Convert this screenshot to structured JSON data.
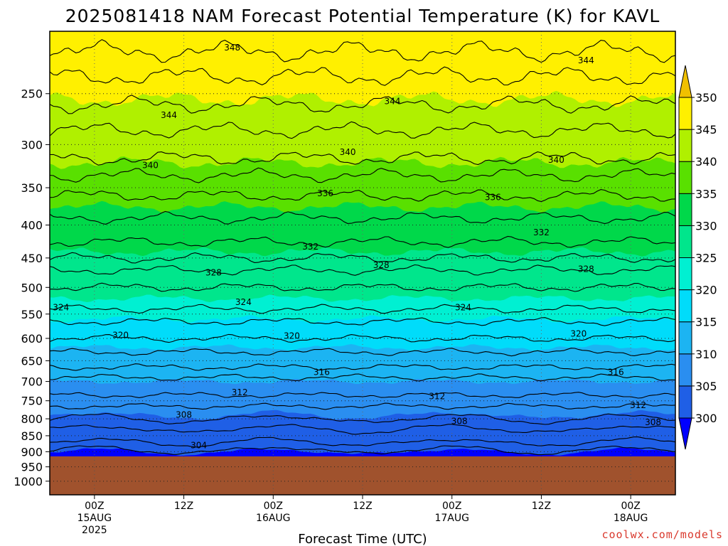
{
  "chart_data": {
    "type": "heatmap",
    "title": "2025081418 NAM Forecast Potential Temperature (K) for KAVL",
    "xlabel": "Forecast Time (UTC)",
    "ylabel": "",
    "credit": "coolwx.com/models",
    "y_axis": {
      "scale": "pressure (inverted)",
      "range": [
        1050,
        200
      ],
      "ticks": [
        250,
        300,
        350,
        400,
        450,
        500,
        550,
        600,
        650,
        700,
        750,
        800,
        850,
        900,
        950,
        1000
      ],
      "tick_labels": [
        "250",
        "300",
        "350",
        "400",
        "450",
        "500",
        "550",
        "600",
        "650",
        "700",
        "750",
        "800",
        "850",
        "900",
        "950",
        "1000"
      ]
    },
    "x_axis": {
      "range_hours_from_init": [
        0,
        84
      ],
      "ticks": [
        {
          "hour": 6,
          "l1": "00Z",
          "l2": "15AUG",
          "l3": "2025"
        },
        {
          "hour": 18,
          "l1": "12Z",
          "l2": "",
          "l3": ""
        },
        {
          "hour": 30,
          "l1": "00Z",
          "l2": "16AUG",
          "l3": ""
        },
        {
          "hour": 42,
          "l1": "12Z",
          "l2": "",
          "l3": ""
        },
        {
          "hour": 54,
          "l1": "00Z",
          "l2": "17AUG",
          "l3": ""
        },
        {
          "hour": 66,
          "l1": "12Z",
          "l2": "",
          "l3": ""
        },
        {
          "hour": 78,
          "l1": "00Z",
          "l2": "18AUG",
          "l3": ""
        }
      ]
    },
    "grid": true,
    "ground_level_hPa": 915,
    "colorbar": {
      "levels": [
        300,
        305,
        310,
        315,
        320,
        325,
        330,
        335,
        340,
        345,
        350
      ],
      "labels": [
        "300",
        "305",
        "310",
        "315",
        "320",
        "325",
        "330",
        "335",
        "340",
        "345",
        "350"
      ],
      "colors": [
        "#0000ff",
        "#1f5fe6",
        "#2a8ef0",
        "#1cb4f2",
        "#00dcfa",
        "#00f0d2",
        "#00e68c",
        "#00d84a",
        "#59e000",
        "#b0f000",
        "#fff000",
        "#f0c000"
      ]
    },
    "fill_levels": [
      {
        "value": 300,
        "color": "#0000ff",
        "p_start": 900,
        "p_end": 915
      },
      {
        "value": 305,
        "color": "#1f5fe6",
        "p_start": 790,
        "p_end": 900
      },
      {
        "value": 310,
        "color": "#2a8ef0",
        "p_start": 700,
        "p_end": 790
      },
      {
        "value": 315,
        "color": "#1cb4f2",
        "p_start": 620,
        "p_end": 700
      },
      {
        "value": 320,
        "color": "#00dcfa",
        "p_start": 560,
        "p_end": 620
      },
      {
        "value": 325,
        "color": "#00f0d2",
        "p_start": 520,
        "p_end": 560
      },
      {
        "value": 330,
        "color": "#00e68c",
        "p_start": 440,
        "p_end": 520
      },
      {
        "value": 335,
        "color": "#00d84a",
        "p_start": 375,
        "p_end": 440
      },
      {
        "value": 340,
        "color": "#59e000",
        "p_start": 320,
        "p_end": 375
      },
      {
        "value": 345,
        "color": "#b0f000",
        "p_start": 255,
        "p_end": 320
      },
      {
        "value": 350,
        "color": "#fff000",
        "p_start": 200,
        "p_end": 255
      }
    ],
    "contours": [
      {
        "value": 348,
        "p": 215
      },
      {
        "value": 346,
        "p": 235
      },
      {
        "value": 344,
        "p": 260
      },
      {
        "value": 342,
        "p": 285
      },
      {
        "value": 340,
        "p": 315
      },
      {
        "value": 338,
        "p": 335
      },
      {
        "value": 336,
        "p": 360
      },
      {
        "value": 334,
        "p": 390
      },
      {
        "value": 332,
        "p": 425
      },
      {
        "value": 330,
        "p": 450
      },
      {
        "value": 328,
        "p": 470
      },
      {
        "value": 326,
        "p": 500
      },
      {
        "value": 324,
        "p": 540
      },
      {
        "value": 322,
        "p": 565
      },
      {
        "value": 320,
        "p": 600
      },
      {
        "value": 318,
        "p": 630
      },
      {
        "value": 316,
        "p": 665
      },
      {
        "value": 314,
        "p": 690
      },
      {
        "value": 312,
        "p": 735
      },
      {
        "value": 310,
        "p": 765
      },
      {
        "value": 308,
        "p": 800
      },
      {
        "value": 306,
        "p": 830
      },
      {
        "value": 304,
        "p": 870
      },
      {
        "value": 302,
        "p": 895
      }
    ],
    "contour_labels": [
      {
        "text": "348",
        "hour": 24.5,
        "p": 212
      },
      {
        "text": "344",
        "hour": 16,
        "p": 270
      },
      {
        "text": "344",
        "hour": 46,
        "p": 257
      },
      {
        "text": "344",
        "hour": 72,
        "p": 222
      },
      {
        "text": "340",
        "hour": 13.5,
        "p": 323
      },
      {
        "text": "340",
        "hour": 40,
        "p": 308
      },
      {
        "text": "340",
        "hour": 68,
        "p": 317
      },
      {
        "text": "336",
        "hour": 37,
        "p": 357
      },
      {
        "text": "336",
        "hour": 59.5,
        "p": 362
      },
      {
        "text": "332",
        "hour": 35,
        "p": 432
      },
      {
        "text": "332",
        "hour": 66,
        "p": 411
      },
      {
        "text": "328",
        "hour": 22,
        "p": 474
      },
      {
        "text": "328",
        "hour": 44.5,
        "p": 462
      },
      {
        "text": "328",
        "hour": 72,
        "p": 468
      },
      {
        "text": "324",
        "hour": 1.5,
        "p": 537
      },
      {
        "text": "324",
        "hour": 26,
        "p": 527
      },
      {
        "text": "324",
        "hour": 55.5,
        "p": 537
      },
      {
        "text": "320",
        "hour": 9.5,
        "p": 593
      },
      {
        "text": "320",
        "hour": 32.5,
        "p": 595
      },
      {
        "text": "320",
        "hour": 71,
        "p": 590
      },
      {
        "text": "316",
        "hour": 36.5,
        "p": 677
      },
      {
        "text": "316",
        "hour": 76,
        "p": 677
      },
      {
        "text": "312",
        "hour": 25.5,
        "p": 728
      },
      {
        "text": "312",
        "hour": 52,
        "p": 738
      },
      {
        "text": "312",
        "hour": 79,
        "p": 762
      },
      {
        "text": "308",
        "hour": 18,
        "p": 789
      },
      {
        "text": "308",
        "hour": 55,
        "p": 807
      },
      {
        "text": "308",
        "hour": 81,
        "p": 810
      },
      {
        "text": "304",
        "hour": 20,
        "p": 880
      }
    ]
  }
}
